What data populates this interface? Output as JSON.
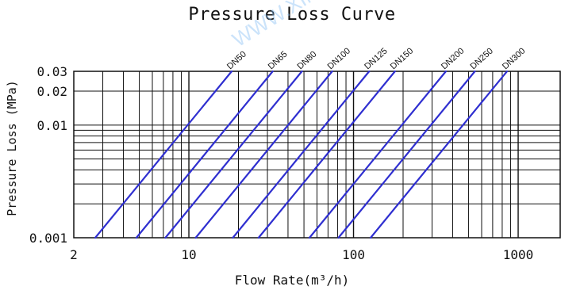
{
  "chart_data": {
    "type": "line",
    "title": "Pressure Loss Curve",
    "xlabel": "Flow Rate(m³/h)",
    "ylabel": "Pressure Loss (MPa)",
    "x_scale": "log",
    "y_scale": "log",
    "xlim": [
      2,
      1800
    ],
    "ylim": [
      0.001,
      0.03
    ],
    "x_ticks": [
      2,
      10,
      100,
      1000
    ],
    "x_tick_labels": [
      "2",
      "10",
      "100",
      "1000"
    ],
    "y_ticks": [
      0.001,
      0.01,
      0.02,
      0.03
    ],
    "y_tick_labels": [
      "0.001",
      "0.01",
      "0.02",
      "0.03"
    ],
    "grid": true,
    "series_color": "#2f2fd0",
    "grid_color": "#111111",
    "watermark_text": "WWW.XIN",
    "series": [
      {
        "name": "DN50",
        "x": [
          2.7,
          18.2
        ],
        "y": [
          0.001,
          0.03
        ]
      },
      {
        "name": "DN65",
        "x": [
          4.8,
          32.3
        ],
        "y": [
          0.001,
          0.03
        ]
      },
      {
        "name": "DN80",
        "x": [
          7.2,
          48.6
        ],
        "y": [
          0.001,
          0.03
        ]
      },
      {
        "name": "DN100",
        "x": [
          11.0,
          74.2
        ],
        "y": [
          0.001,
          0.03
        ]
      },
      {
        "name": "DN125",
        "x": [
          18.5,
          124.5
        ],
        "y": [
          0.001,
          0.03
        ]
      },
      {
        "name": "DN150",
        "x": [
          26.5,
          178.6
        ],
        "y": [
          0.001,
          0.03
        ]
      },
      {
        "name": "DN200",
        "x": [
          54.0,
          364.0
        ],
        "y": [
          0.001,
          0.03
        ]
      },
      {
        "name": "DN250",
        "x": [
          81.0,
          546.0
        ],
        "y": [
          0.001,
          0.03
        ]
      },
      {
        "name": "DN300",
        "x": [
          127.0,
          856.0
        ],
        "y": [
          0.001,
          0.03
        ]
      }
    ]
  }
}
